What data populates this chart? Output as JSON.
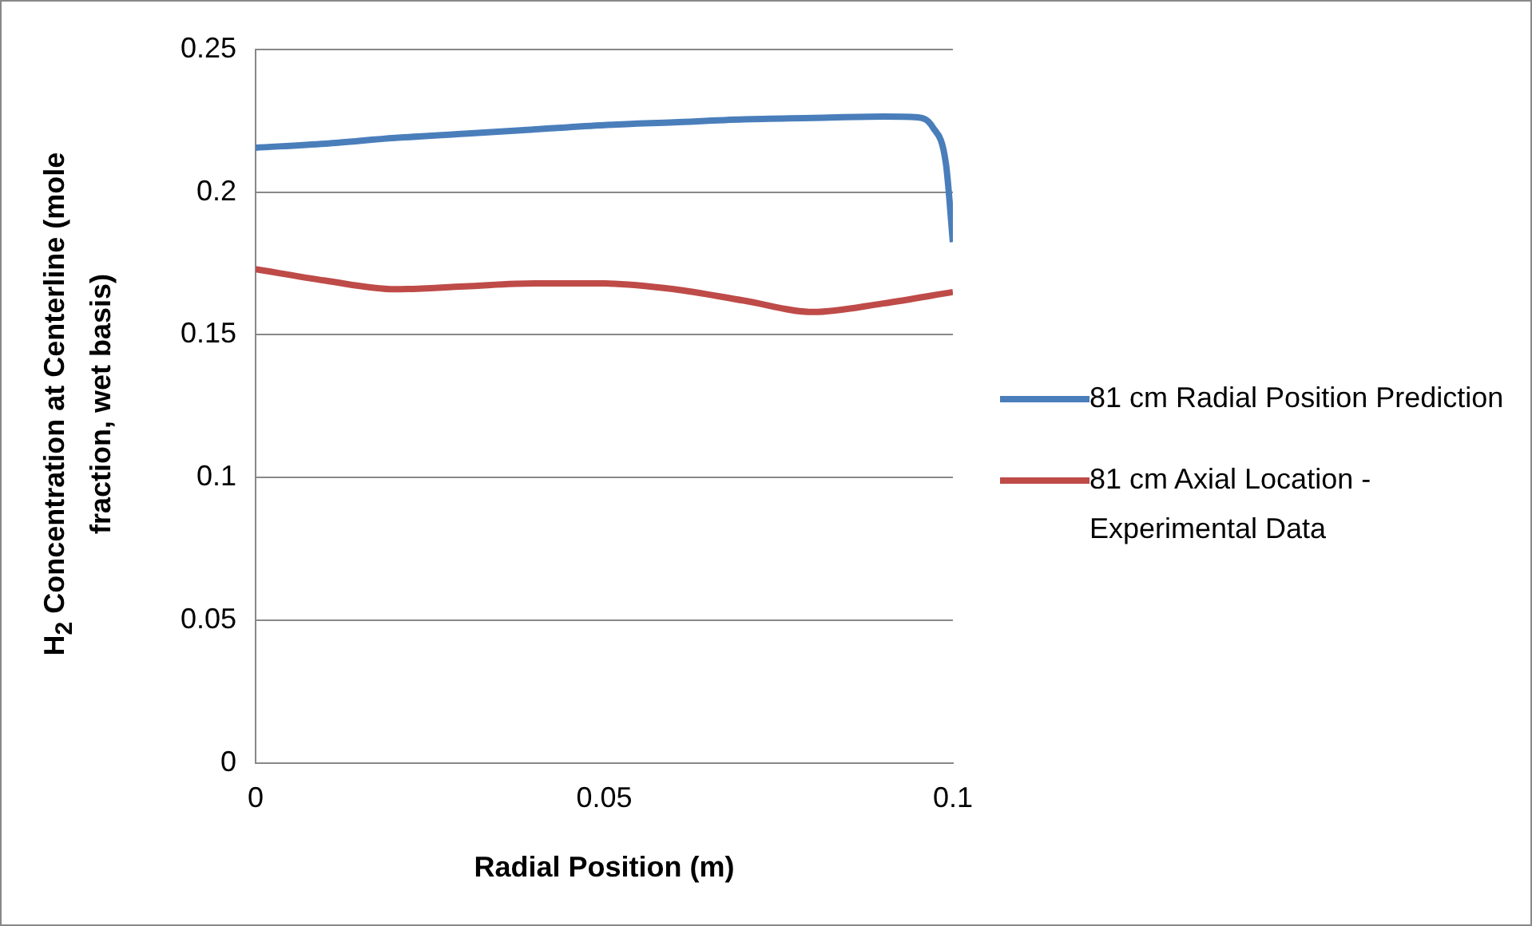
{
  "chart_data": {
    "type": "line",
    "xlabel": "Radial Position (m)",
    "ylabel": "H$_{2}$ Concentration at Centerline (mole fraction, wet basis)",
    "xlim": [
      0,
      0.1
    ],
    "xticks": [
      0,
      0.05,
      0.1
    ],
    "ylim": [
      0,
      0.25
    ],
    "yticks": [
      0,
      0.05,
      0.1,
      0.15,
      0.2,
      0.25
    ],
    "grid": "y",
    "legend": "right",
    "marker": "none",
    "series": [
      {
        "name": "81 cm Radial Position Prediction",
        "color": "#4a7ebb",
        "x": [
          0,
          0.01,
          0.02,
          0.03,
          0.04,
          0.05,
          0.06,
          0.07,
          0.08,
          0.09,
          0.095,
          0.0971,
          0.099,
          0.1
        ],
        "values": [
          0.2156,
          0.217,
          0.219,
          0.2205,
          0.222,
          0.2235,
          0.2245,
          0.2255,
          0.226,
          0.2265,
          0.2262,
          0.2228,
          0.21,
          0.1825
        ]
      },
      {
        "name": "81 cm Axial Location - Experimental Data",
        "color": "#be4b48",
        "x": [
          0,
          0.01,
          0.02,
          0.03,
          0.04,
          0.05,
          0.06,
          0.07,
          0.08,
          0.09,
          0.1
        ],
        "values": [
          0.173,
          0.169,
          0.166,
          0.167,
          0.168,
          0.168,
          0.166,
          0.162,
          0.158,
          0.161,
          0.165
        ]
      }
    ]
  }
}
